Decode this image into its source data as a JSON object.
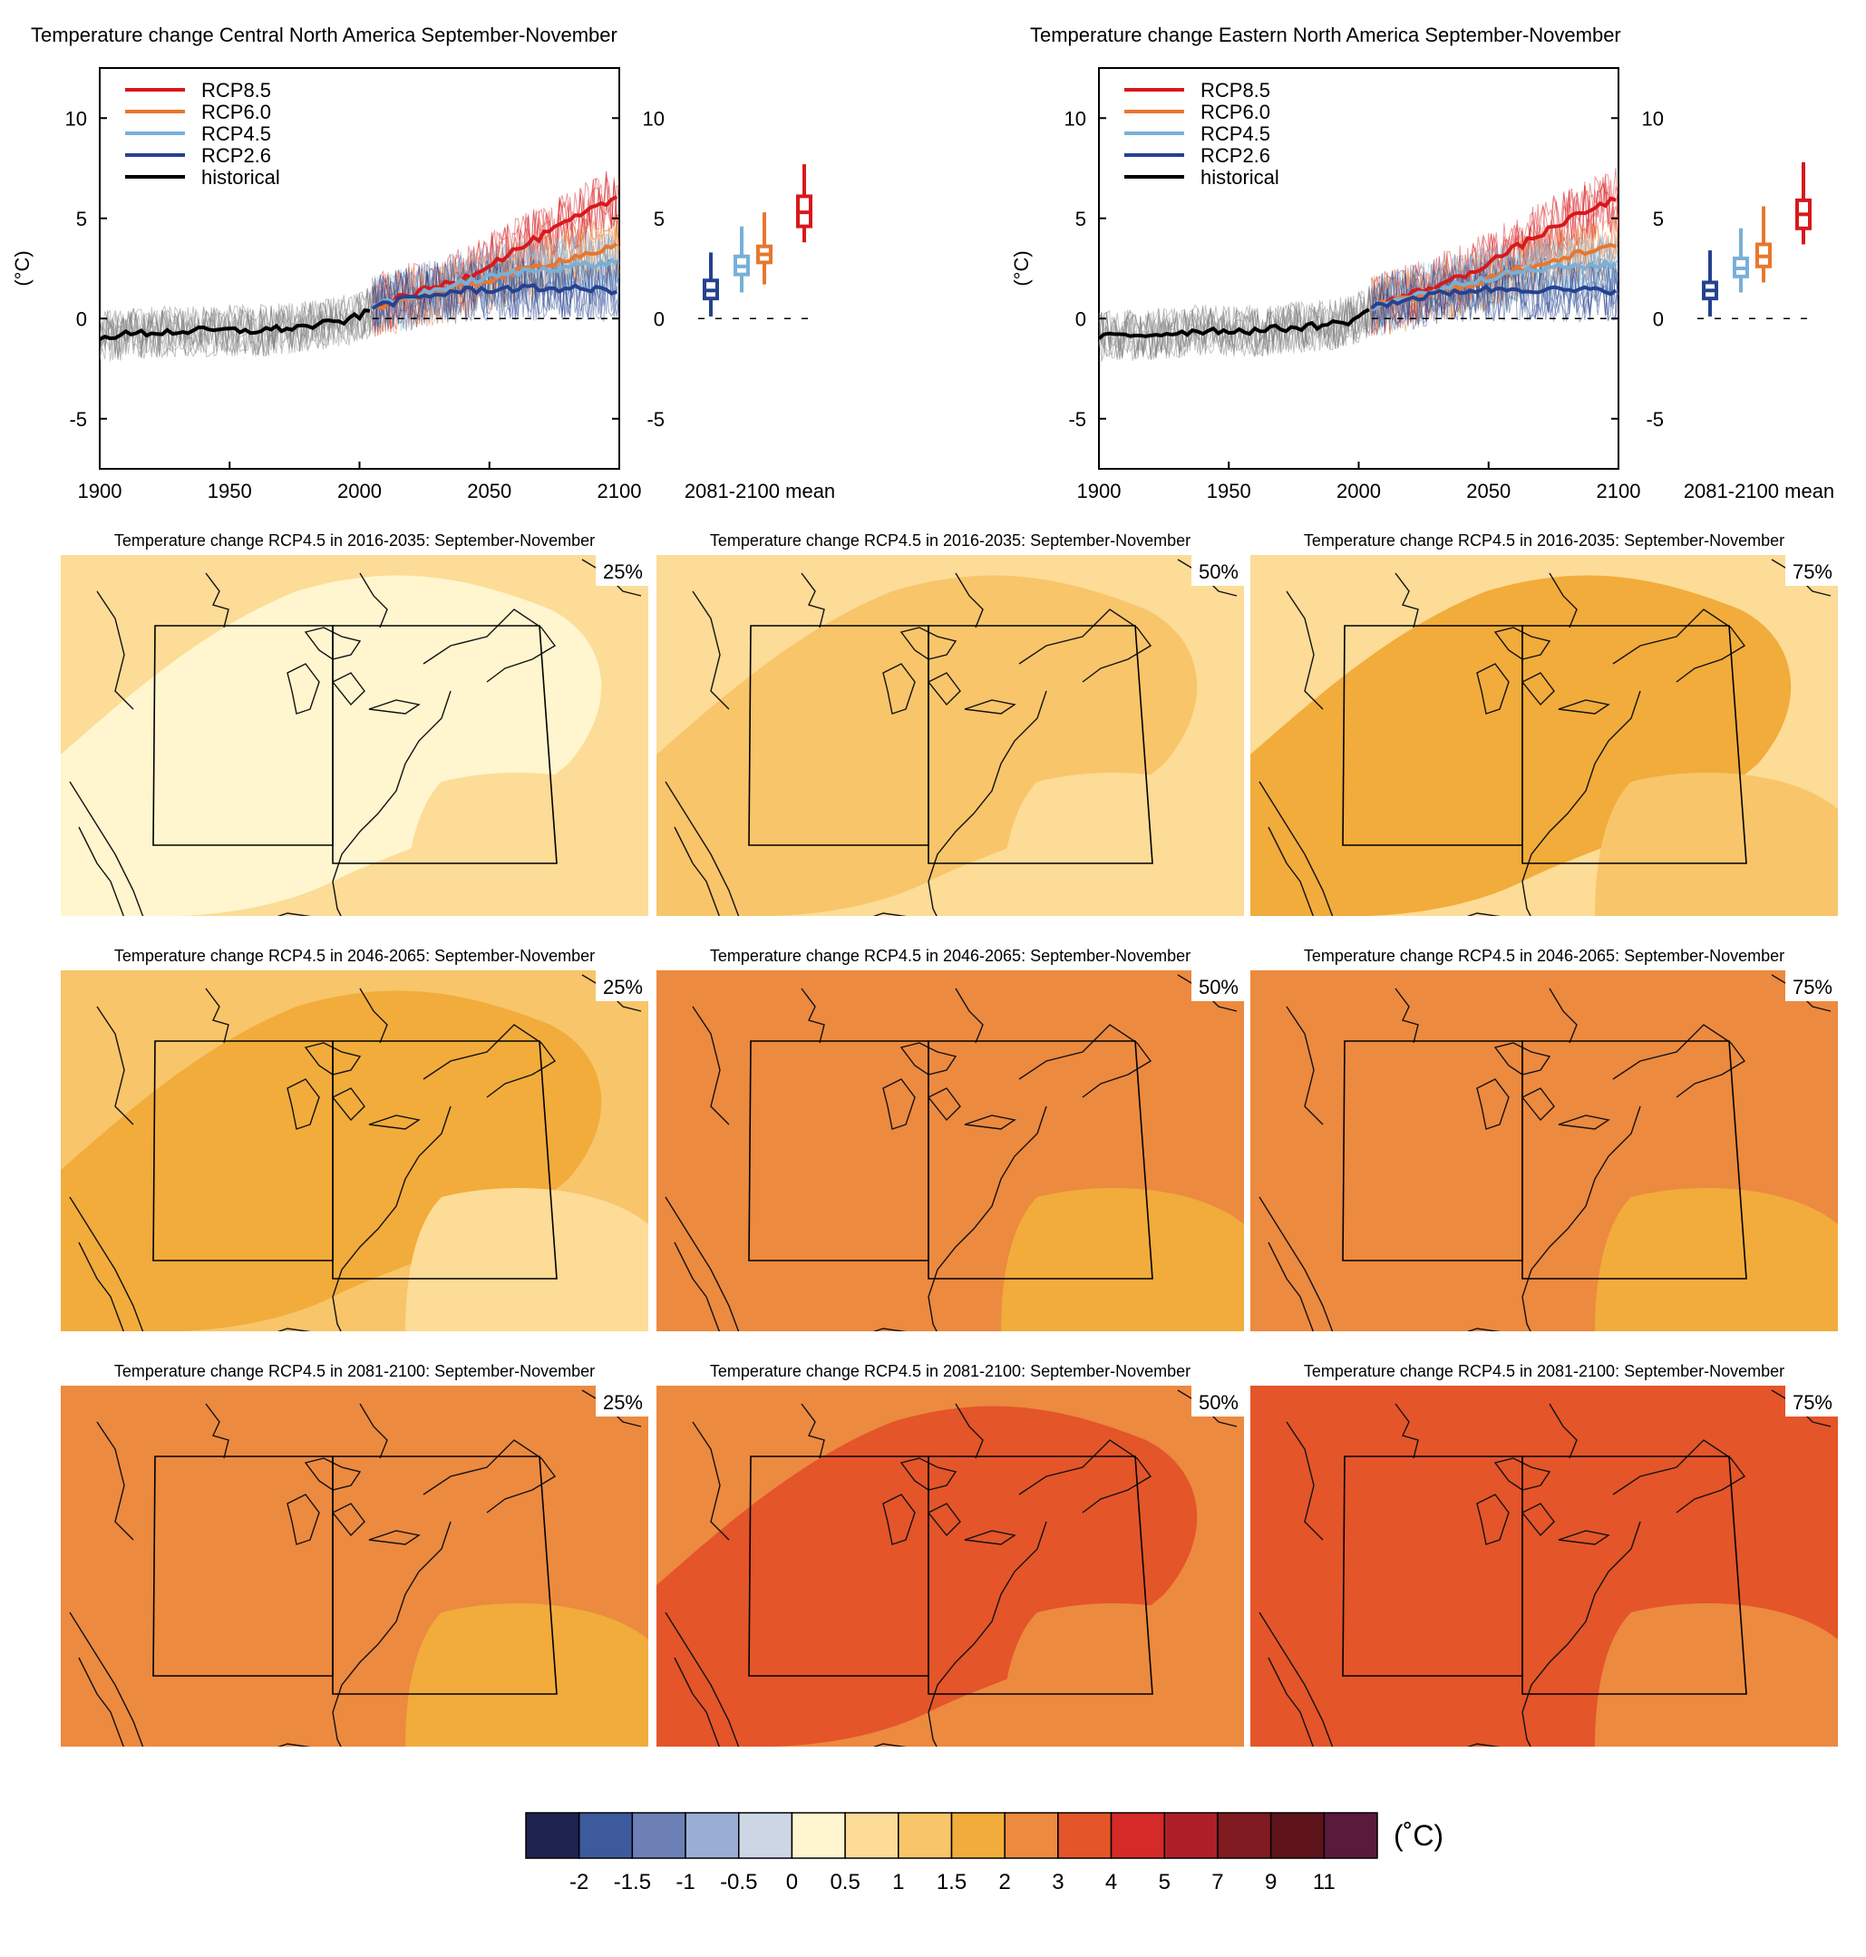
{
  "timeseries_panels": [
    {
      "title": "Temperature change Central North America September-November"
    },
    {
      "title": "Temperature change Eastern North America September-November"
    }
  ],
  "legend": [
    {
      "label": "RCP8.5",
      "color": "#d7191c"
    },
    {
      "label": "RCP6.0",
      "color": "#e8772e"
    },
    {
      "label": "RCP4.5",
      "color": "#79b0d8"
    },
    {
      "label": "RCP2.6",
      "color": "#25428f"
    },
    {
      "label": "historical",
      "color": "#000000"
    }
  ],
  "axis": {
    "ylabel": "(°C)",
    "x_ticks": [
      "1900",
      "1950",
      "2000",
      "2050",
      "2100"
    ],
    "y_ticks": [
      "10",
      "5",
      "0",
      "-5"
    ],
    "mean_label": "2081-2100 mean"
  },
  "maps": {
    "titles": [
      "Temperature change RCP4.5 in 2016-2035: September-November",
      "Temperature change RCP4.5 in 2046-2065: September-November",
      "Temperature change RCP4.5 in 2081-2100: September-November"
    ],
    "percentiles": [
      "25%",
      "50%",
      "75%"
    ],
    "fill_levels": [
      [
        [
          "0.5-1",
          "0-0.5",
          "0.5-1"
        ],
        [
          "0.5-1",
          "1-1.5",
          "0.5-1"
        ],
        [
          "0.5-1",
          "1.5-2",
          "1-1.5"
        ]
      ],
      [
        [
          "1-1.5",
          "1.5-2",
          "0.5-1"
        ],
        [
          "2-3",
          "2-3",
          "1.5-2"
        ],
        [
          "2-3",
          "2-3",
          "1.5-2"
        ]
      ],
      [
        [
          "2-3",
          "2-3",
          "1.5-2"
        ],
        [
          "2-3",
          "3-4",
          "2-3"
        ],
        [
          "3-4",
          "3-4",
          "2-3"
        ]
      ]
    ]
  },
  "colorbar": {
    "labels": [
      "-2",
      "-1.5",
      "-1",
      "-0.5",
      "0",
      "0.5",
      "1",
      "1.5",
      "2",
      "3",
      "4",
      "5",
      "7",
      "9",
      "11"
    ],
    "colors": [
      "#1f2350",
      "#3d5a9d",
      "#6c80b5",
      "#9aaed3",
      "#cdd6e5",
      "#fff6cf",
      "#fcdc96",
      "#f8c56a",
      "#f1ac3b",
      "#ec8a40",
      "#e45529",
      "#d52a28",
      "#ae2029",
      "#801b22",
      "#5e141a",
      "#5a1a3c"
    ],
    "unit": "(˚C)"
  },
  "chart_data": [
    {
      "type": "line",
      "title": "Temperature change Central North America September-November",
      "ylabel": "(°C)",
      "xlim": [
        1900,
        2100
      ],
      "ylim": [
        -7.5,
        12.5
      ],
      "series": [
        {
          "name": "historical",
          "x": [
            1900,
            1920,
            1940,
            1960,
            1980,
            1995,
            2005
          ],
          "y": [
            -0.9,
            -0.7,
            -0.6,
            -0.6,
            -0.4,
            -0.1,
            0.4
          ]
        },
        {
          "name": "RCP8.5",
          "x": [
            2005,
            2020,
            2040,
            2060,
            2080,
            2100
          ],
          "y": [
            0.6,
            1.2,
            2.0,
            3.4,
            4.8,
            6.1
          ]
        },
        {
          "name": "RCP6.0",
          "x": [
            2005,
            2020,
            2040,
            2060,
            2080,
            2100
          ],
          "y": [
            0.6,
            1.0,
            1.6,
            2.3,
            3.0,
            3.6
          ]
        },
        {
          "name": "RCP4.5",
          "x": [
            2005,
            2020,
            2040,
            2060,
            2080,
            2100
          ],
          "y": [
            0.6,
            1.1,
            1.8,
            2.3,
            2.6,
            2.8
          ]
        },
        {
          "name": "RCP2.6",
          "x": [
            2005,
            2020,
            2040,
            2060,
            2080,
            2100
          ],
          "y": [
            0.6,
            1.0,
            1.4,
            1.5,
            1.5,
            1.4
          ]
        }
      ],
      "box_2081_2100": [
        {
          "name": "RCP2.6",
          "min": 0.1,
          "q1": 1.0,
          "median": 1.4,
          "q3": 1.9,
          "max": 3.3
        },
        {
          "name": "RCP4.5",
          "min": 1.3,
          "q1": 2.2,
          "median": 2.6,
          "q3": 3.1,
          "max": 4.6
        },
        {
          "name": "RCP6.0",
          "min": 1.7,
          "q1": 2.8,
          "median": 3.2,
          "q3": 3.6,
          "max": 5.3
        },
        {
          "name": "RCP8.5",
          "min": 3.8,
          "q1": 4.6,
          "median": 5.3,
          "q3": 6.1,
          "max": 7.7
        }
      ]
    },
    {
      "type": "line",
      "title": "Temperature change Eastern North America September-November",
      "ylabel": "(°C)",
      "xlim": [
        1900,
        2100
      ],
      "ylim": [
        -7.5,
        12.5
      ],
      "series": [
        {
          "name": "historical",
          "x": [
            1900,
            1920,
            1940,
            1960,
            1980,
            1995,
            2005
          ],
          "y": [
            -0.9,
            -0.8,
            -0.6,
            -0.6,
            -0.4,
            -0.2,
            0.4
          ]
        },
        {
          "name": "RCP8.5",
          "x": [
            2005,
            2020,
            2040,
            2060,
            2080,
            2100
          ],
          "y": [
            0.6,
            1.2,
            2.1,
            3.5,
            4.9,
            6.0
          ]
        },
        {
          "name": "RCP6.0",
          "x": [
            2005,
            2020,
            2040,
            2060,
            2080,
            2100
          ],
          "y": [
            0.6,
            1.0,
            1.6,
            2.4,
            3.1,
            3.6
          ]
        },
        {
          "name": "RCP4.5",
          "x": [
            2005,
            2020,
            2040,
            2060,
            2080,
            2100
          ],
          "y": [
            0.6,
            1.1,
            1.8,
            2.3,
            2.6,
            2.7
          ]
        },
        {
          "name": "RCP2.6",
          "x": [
            2005,
            2020,
            2040,
            2060,
            2080,
            2100
          ],
          "y": [
            0.6,
            1.0,
            1.4,
            1.5,
            1.4,
            1.4
          ]
        }
      ],
      "box_2081_2100": [
        {
          "name": "RCP2.6",
          "min": 0.1,
          "q1": 1.0,
          "median": 1.4,
          "q3": 1.8,
          "max": 3.4
        },
        {
          "name": "RCP4.5",
          "min": 1.3,
          "q1": 2.1,
          "median": 2.5,
          "q3": 3.0,
          "max": 4.5
        },
        {
          "name": "RCP6.0",
          "min": 1.8,
          "q1": 2.6,
          "median": 3.1,
          "q3": 3.7,
          "max": 5.6
        },
        {
          "name": "RCP8.5",
          "min": 3.7,
          "q1": 4.5,
          "median": 5.2,
          "q3": 5.9,
          "max": 7.8
        }
      ]
    }
  ]
}
